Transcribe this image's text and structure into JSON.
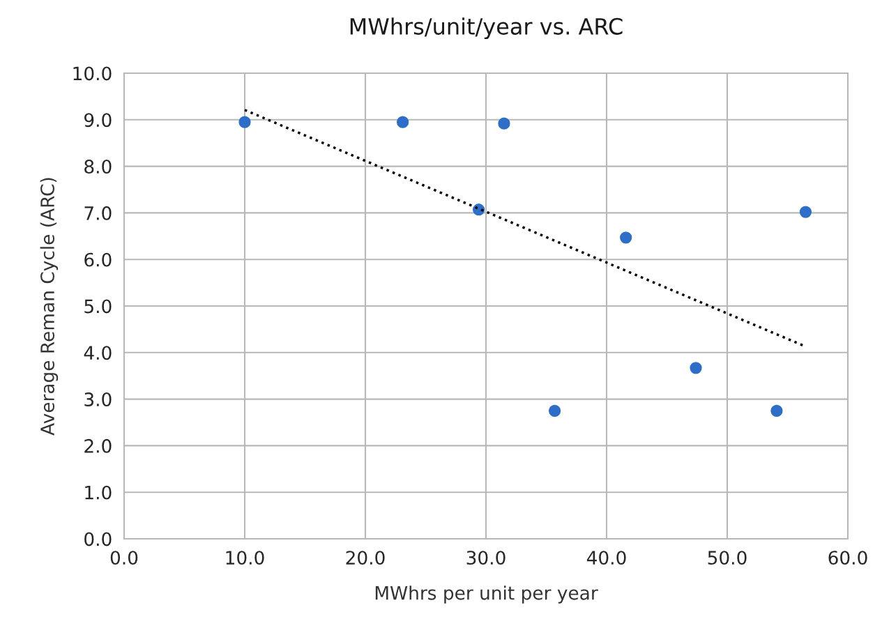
{
  "chart_data": {
    "type": "scatter",
    "title": "MWhrs/unit/year vs. ARC",
    "xlabel": "MWhrs per unit per year",
    "ylabel": "Average Reman Cycle (ARC)",
    "series": [
      {
        "color": "#2e6ec6",
        "marker": "circle",
        "x": [
          10.0,
          23.1,
          31.5,
          29.4,
          56.5,
          41.6,
          47.4,
          35.7,
          54.1
        ],
        "values": [
          8.95,
          8.95,
          8.92,
          7.07,
          7.02,
          6.47,
          3.67,
          2.75,
          2.75
        ]
      },
      {
        "type": "line",
        "color": "#000000",
        "marker": "none",
        "line_style": "dotted",
        "x": [
          10.0,
          56.5
        ],
        "values": [
          9.21,
          4.13
        ]
      }
    ],
    "xlim": [
      0,
      60
    ],
    "ylim": [
      0,
      10
    ],
    "xticks": [
      {
        "value": 0,
        "label": "0.0"
      },
      {
        "value": 10,
        "label": "10.0"
      },
      {
        "value": 20,
        "label": "20.0"
      },
      {
        "value": 30,
        "label": "30.0"
      },
      {
        "value": 40,
        "label": "40.0"
      },
      {
        "value": 50,
        "label": "50.0"
      },
      {
        "value": 60,
        "label": "60.0"
      }
    ],
    "yticks": [
      {
        "value": 0,
        "label": "0.0"
      },
      {
        "value": 1,
        "label": "1.0"
      },
      {
        "value": 2,
        "label": "2.0"
      },
      {
        "value": 3,
        "label": "3.0"
      },
      {
        "value": 4,
        "label": "4.0"
      },
      {
        "value": 5,
        "label": "5.0"
      },
      {
        "value": 6,
        "label": "6.0"
      },
      {
        "value": 7,
        "label": "7.0"
      },
      {
        "value": 8,
        "label": "8.0"
      },
      {
        "value": 9,
        "label": "9.0"
      },
      {
        "value": 10,
        "label": "10.0"
      }
    ],
    "grid": true
  }
}
